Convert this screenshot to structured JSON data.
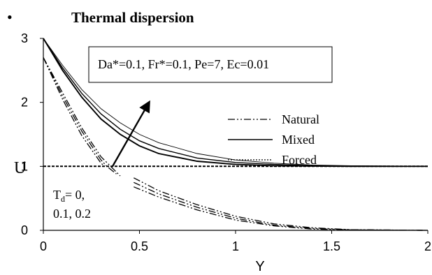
{
  "header": {
    "bullet": "•",
    "title": "Thermal dispersion"
  },
  "chart_data": {
    "type": "line",
    "xlabel": "Y",
    "ylabel": "U",
    "xlim": [
      0,
      2
    ],
    "ylim": [
      0,
      3
    ],
    "x_ticks": [
      "0",
      "0.5",
      "1",
      "1.5",
      "2"
    ],
    "y_ticks": [
      "0",
      "1",
      "2",
      "3"
    ],
    "grid": false,
    "params_box": "Da*=0.1, Fr*=0.1, Pe=7, Ec=0.01",
    "legend": {
      "position": "center-right",
      "entries": [
        "Natural",
        "Mixed",
        "Forced"
      ]
    },
    "td_annotation": {
      "line1_T": "T",
      "line1_sub": "d",
      "line1_rest": "= 0,",
      "line2": "0.1, 0.2"
    },
    "series": [
      {
        "name": "Natural",
        "group": "upper",
        "x": [
          0,
          0.1,
          0.2,
          0.3,
          0.35,
          0.4
        ],
        "values": [
          2.7,
          2.15,
          1.6,
          1.15,
          1.0,
          0.85
        ]
      },
      {
        "name": "Natural",
        "group": "upper",
        "x": [
          0,
          0.1,
          0.2,
          0.3,
          0.33,
          0.38
        ],
        "values": [
          2.7,
          2.1,
          1.55,
          1.1,
          1.0,
          0.88
        ]
      },
      {
        "name": "Natural",
        "group": "upper",
        "x": [
          0,
          0.1,
          0.2,
          0.3,
          0.32
        ],
        "values": [
          2.7,
          2.05,
          1.48,
          1.05,
          1.0
        ]
      },
      {
        "name": "Natural",
        "group": "lower",
        "x": [
          0.47,
          0.6,
          0.8,
          1.0,
          1.2,
          1.4,
          1.6,
          2.0
        ],
        "values": [
          0.82,
          0.62,
          0.4,
          0.22,
          0.1,
          0.04,
          0.01,
          0
        ]
      },
      {
        "name": "Natural",
        "group": "lower",
        "x": [
          0.47,
          0.6,
          0.8,
          1.0,
          1.2,
          1.4,
          1.6,
          2.0
        ],
        "values": [
          0.75,
          0.57,
          0.36,
          0.19,
          0.08,
          0.03,
          0.01,
          0
        ]
      },
      {
        "name": "Natural",
        "group": "lower",
        "x": [
          0.47,
          0.6,
          0.8,
          1.0,
          1.2,
          1.4,
          1.6,
          2.0
        ],
        "values": [
          0.68,
          0.52,
          0.32,
          0.16,
          0.07,
          0.02,
          0.005,
          0
        ]
      },
      {
        "name": "Mixed",
        "x": [
          0,
          0.1,
          0.2,
          0.3,
          0.4,
          0.5,
          0.6,
          0.8,
          1.0,
          1.2,
          1.4,
          1.6,
          2.0
        ],
        "values": [
          3.0,
          2.58,
          2.2,
          1.9,
          1.68,
          1.5,
          1.37,
          1.2,
          1.1,
          1.05,
          1.02,
          1.01,
          1.0
        ]
      },
      {
        "name": "Mixed",
        "x": [
          0,
          0.1,
          0.2,
          0.3,
          0.4,
          0.5,
          0.6,
          0.8,
          1.0,
          1.2,
          1.4,
          1.6,
          2.0
        ],
        "values": [
          3.0,
          2.54,
          2.14,
          1.82,
          1.58,
          1.4,
          1.28,
          1.13,
          1.06,
          1.03,
          1.01,
          1.005,
          1.0
        ]
      },
      {
        "name": "Mixed",
        "x": [
          0,
          0.1,
          0.2,
          0.3,
          0.4,
          0.5,
          0.6,
          0.8,
          1.0,
          1.2,
          1.4,
          1.6,
          2.0
        ],
        "values": [
          3.0,
          2.5,
          2.08,
          1.74,
          1.5,
          1.32,
          1.2,
          1.08,
          1.03,
          1.01,
          1.005,
          1.0,
          1.0
        ]
      },
      {
        "name": "Forced",
        "x": [
          0,
          2
        ],
        "values": [
          1.0,
          1.0
        ]
      }
    ],
    "arrow": {
      "from": [
        0.36,
        1.0
      ],
      "to": [
        0.55,
        2.0
      ]
    }
  }
}
